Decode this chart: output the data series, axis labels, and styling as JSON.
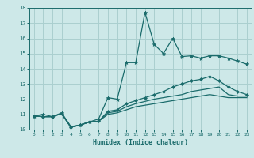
{
  "xlabel": "Humidex (Indice chaleur)",
  "xlim": [
    -0.5,
    23.5
  ],
  "ylim": [
    10,
    18
  ],
  "xticks": [
    0,
    1,
    2,
    3,
    4,
    5,
    6,
    7,
    8,
    9,
    10,
    11,
    12,
    13,
    14,
    15,
    16,
    17,
    18,
    19,
    20,
    21,
    22,
    23
  ],
  "yticks": [
    10,
    11,
    12,
    13,
    14,
    15,
    16,
    17,
    18
  ],
  "background_color": "#cde8e8",
  "grid_color": "#aacfcf",
  "line_color": "#1a6b6b",
  "series": [
    {
      "x": [
        0,
        1,
        2,
        3,
        4,
        5,
        6,
        7,
        8,
        9,
        10,
        11,
        12,
        13,
        14,
        15,
        16,
        17,
        18,
        19,
        20,
        21,
        22,
        23
      ],
      "y": [
        10.9,
        11.0,
        10.85,
        11.1,
        10.2,
        10.3,
        10.5,
        10.7,
        12.1,
        12.0,
        14.4,
        14.4,
        17.7,
        15.6,
        15.0,
        16.0,
        14.8,
        14.85,
        14.7,
        14.85,
        14.85,
        14.7,
        14.5,
        14.3
      ],
      "marker": "*",
      "markersize": 3.5,
      "linewidth": 0.9
    },
    {
      "x": [
        0,
        1,
        2,
        3,
        4,
        5,
        6,
        7,
        8,
        9,
        10,
        11,
        12,
        13,
        14,
        15,
        16,
        17,
        18,
        19,
        20,
        21,
        22,
        23
      ],
      "y": [
        10.9,
        10.85,
        10.85,
        11.05,
        10.15,
        10.3,
        10.5,
        10.55,
        11.2,
        11.3,
        11.7,
        11.9,
        12.1,
        12.3,
        12.5,
        12.8,
        13.0,
        13.2,
        13.3,
        13.5,
        13.2,
        12.8,
        12.5,
        12.3
      ],
      "marker": "D",
      "markersize": 2.0,
      "linewidth": 0.9
    },
    {
      "x": [
        0,
        1,
        2,
        3,
        4,
        5,
        6,
        7,
        8,
        9,
        10,
        11,
        12,
        13,
        14,
        15,
        16,
        17,
        18,
        19,
        20,
        21,
        22,
        23
      ],
      "y": [
        10.9,
        10.85,
        10.85,
        11.05,
        10.15,
        10.3,
        10.5,
        10.55,
        11.1,
        11.2,
        11.5,
        11.7,
        11.85,
        12.0,
        12.1,
        12.2,
        12.3,
        12.5,
        12.6,
        12.7,
        12.8,
        12.3,
        12.2,
        12.2
      ],
      "marker": null,
      "markersize": 0,
      "linewidth": 0.9
    },
    {
      "x": [
        0,
        1,
        2,
        3,
        4,
        5,
        6,
        7,
        8,
        9,
        10,
        11,
        12,
        13,
        14,
        15,
        16,
        17,
        18,
        19,
        20,
        21,
        22,
        23
      ],
      "y": [
        10.9,
        10.85,
        10.85,
        11.05,
        10.15,
        10.3,
        10.5,
        10.55,
        11.0,
        11.1,
        11.3,
        11.5,
        11.6,
        11.7,
        11.8,
        11.9,
        12.0,
        12.1,
        12.2,
        12.3,
        12.2,
        12.1,
        12.1,
        12.1
      ],
      "marker": null,
      "markersize": 0,
      "linewidth": 0.9
    }
  ]
}
